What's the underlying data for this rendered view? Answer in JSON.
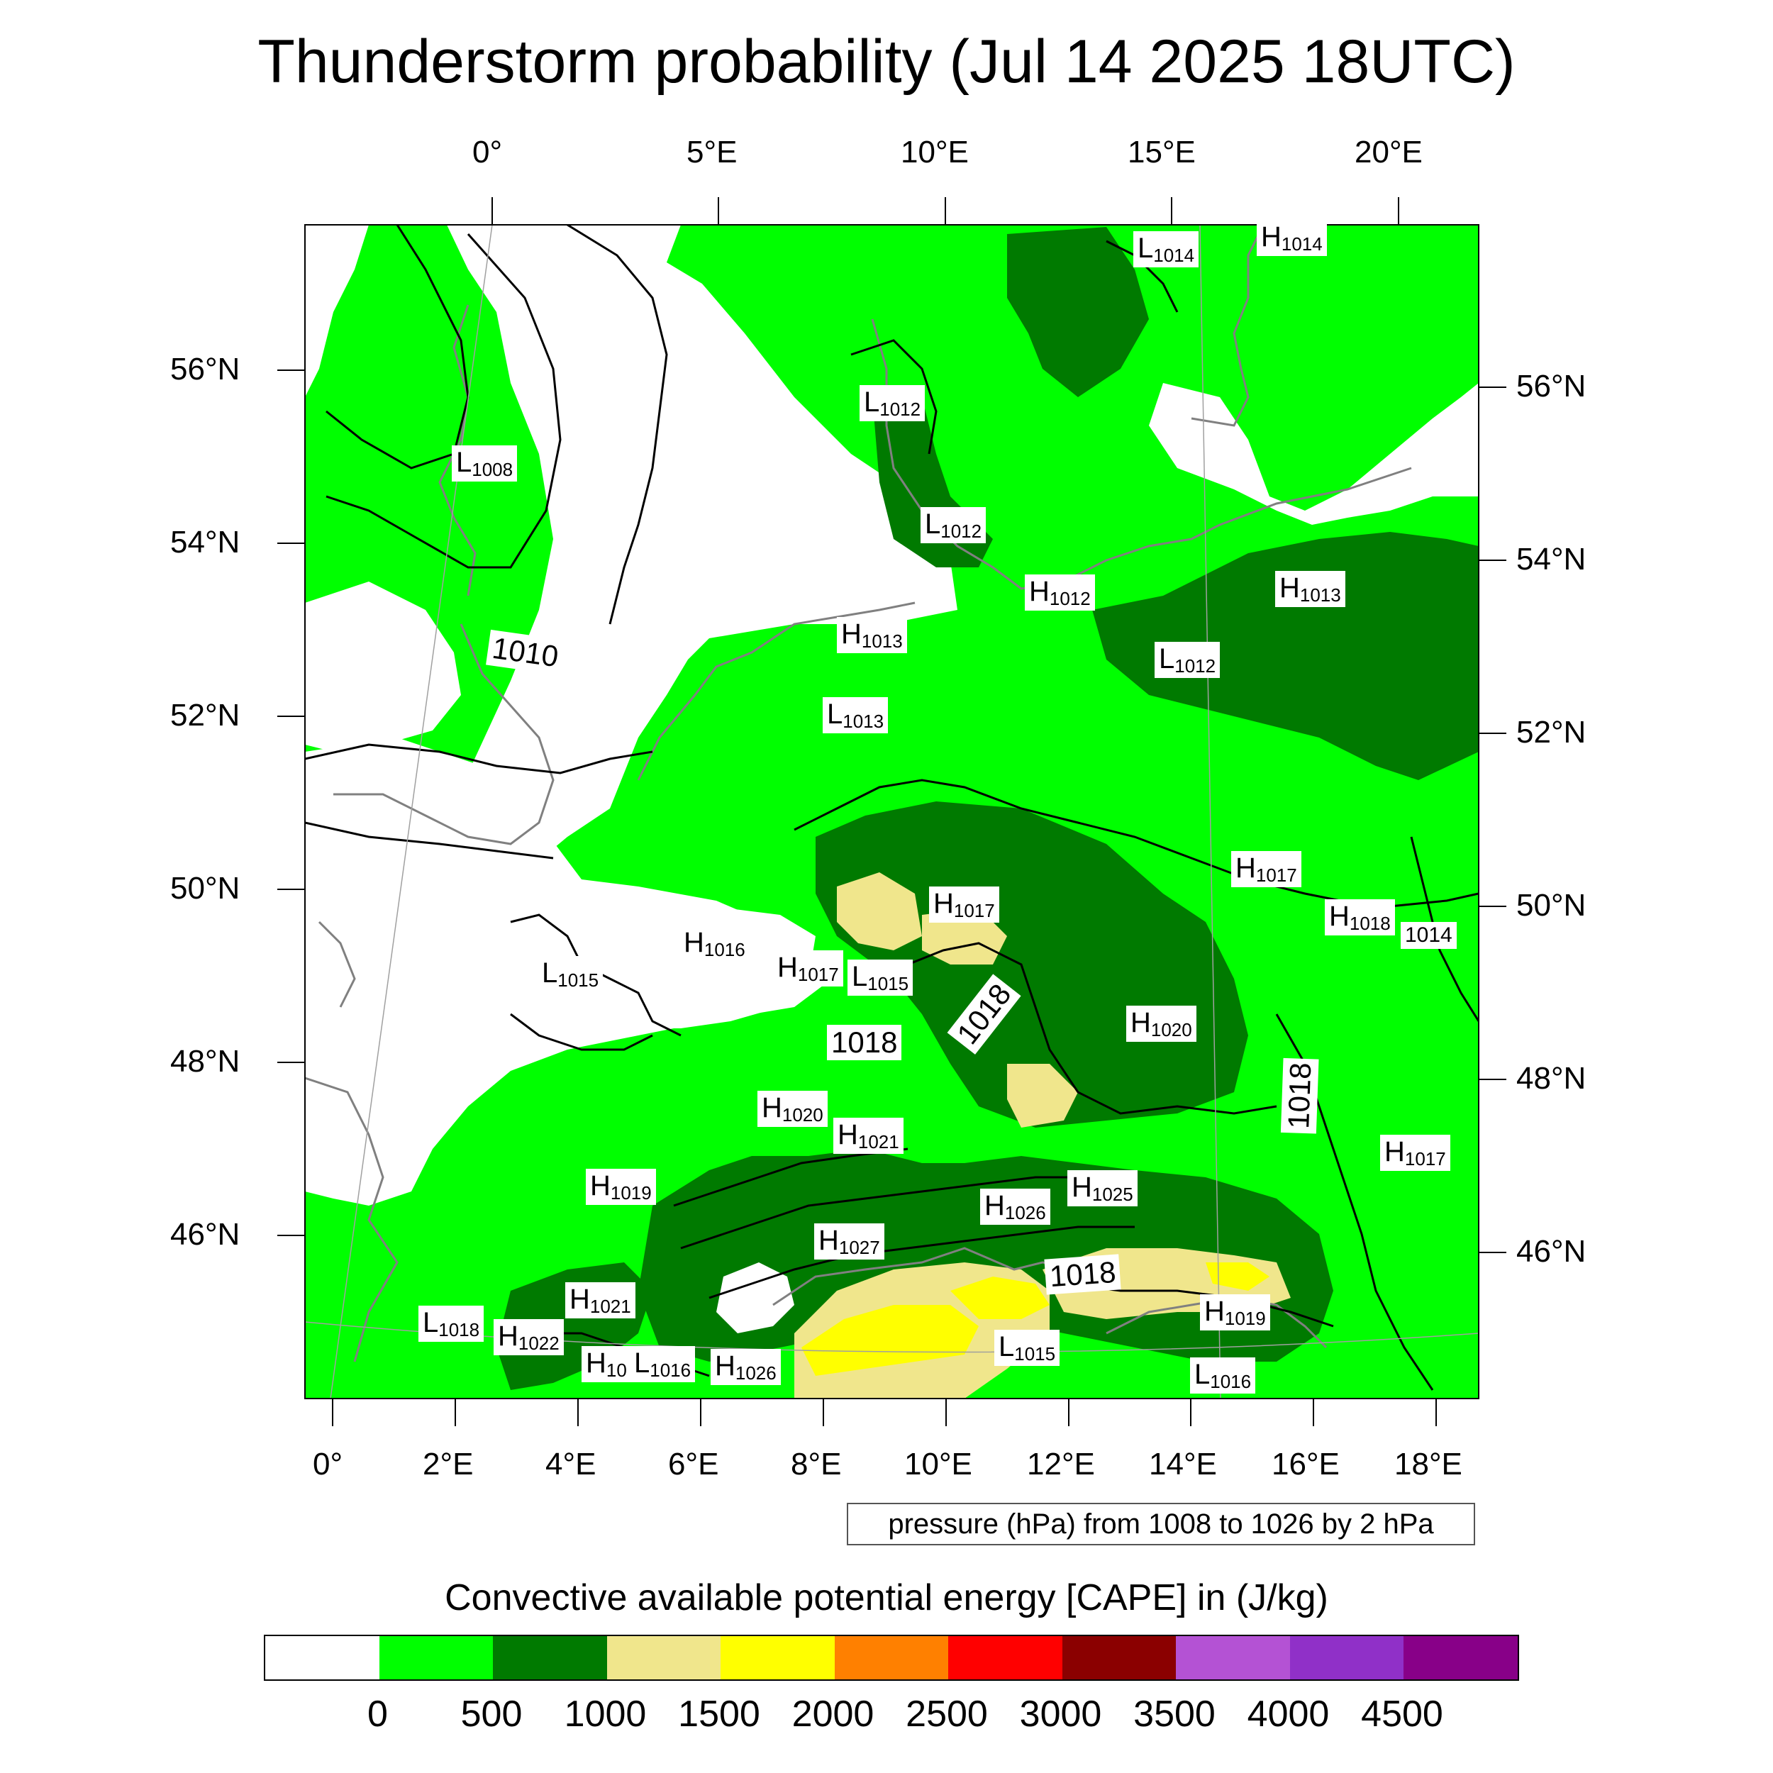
{
  "title": "Thunderstorm probability (Jul 14 2025 18UTC)",
  "top_lon_labels": [
    "0°",
    "5°E",
    "10°E",
    "15°E",
    "20°E"
  ],
  "bottom_lon_labels": [
    "0°",
    "2°E",
    "4°E",
    "6°E",
    "8°E",
    "10°E",
    "12°E",
    "14°E",
    "16°E",
    "18°E"
  ],
  "left_lat_labels": [
    "56°N",
    "54°N",
    "52°N",
    "50°N",
    "48°N",
    "46°N"
  ],
  "right_lat_labels": [
    "56°N",
    "54°N",
    "52°N",
    "50°N",
    "48°N",
    "46°N"
  ],
  "pressure_info": "pressure (hPa) from 1008 to 1026 by 2 hPa",
  "colorbar": {
    "caption": "Convective available potential energy [CAPE] in (J/kg)",
    "colors": [
      "#ffffff",
      "#00ff00",
      "#007a00",
      "#f0e68c",
      "#ffff00",
      "#ff8000",
      "#ff0000",
      "#8b0000",
      "#b452d4",
      "#9030c8",
      "#880088"
    ],
    "tick_labels": [
      "0",
      "500",
      "1000",
      "1500",
      "2000",
      "2500",
      "3000",
      "3500",
      "4000",
      "4500"
    ]
  },
  "map": {
    "colors": {
      "land_green": "#00ff00",
      "dark_green": "#007a00",
      "khaki": "#f0e68c",
      "yellow": "#ffff00",
      "coast": "#808080",
      "isobar": "#000000"
    },
    "pressure_centers": [
      {
        "type": "L",
        "value": "1014"
      },
      {
        "type": "H",
        "value": "1014"
      },
      {
        "type": "L",
        "value": "1012"
      },
      {
        "type": "L",
        "value": "1008"
      },
      {
        "type": "L",
        "value": "1012"
      },
      {
        "type": "H",
        "value": "1012"
      },
      {
        "type": "H",
        "value": "1013"
      },
      {
        "type": "H",
        "value": "1013"
      },
      {
        "type": "L",
        "value": "1012"
      },
      {
        "type": "L",
        "value": "1013"
      },
      {
        "type": "H",
        "value": "1017"
      },
      {
        "type": "H",
        "value": "1017"
      },
      {
        "type": "H",
        "value": "1018"
      },
      {
        "type": "H",
        "value": "1016"
      },
      {
        "type": "H",
        "value": "1017"
      },
      {
        "type": "L",
        "value": "1015"
      },
      {
        "type": "L",
        "value": "1015"
      },
      {
        "type": "H",
        "value": "1020"
      },
      {
        "type": "H",
        "value": "1020"
      },
      {
        "type": "H",
        "value": "1021"
      },
      {
        "type": "H",
        "value": "1019"
      },
      {
        "type": "H",
        "value": "1017"
      },
      {
        "type": "H",
        "value": "1026"
      },
      {
        "type": "H",
        "value": "1025"
      },
      {
        "type": "H",
        "value": "1027"
      },
      {
        "type": "H",
        "value": "1021"
      },
      {
        "type": "L",
        "value": "1018"
      },
      {
        "type": "H",
        "value": "1022"
      },
      {
        "type": "H",
        "value": "10"
      },
      {
        "type": "L",
        "value": "1016"
      },
      {
        "type": "H",
        "value": "1026"
      },
      {
        "type": "L",
        "value": "1015"
      },
      {
        "type": "H",
        "value": "1019"
      },
      {
        "type": "L",
        "value": "1016"
      }
    ],
    "isobar_labels": [
      "1010",
      "1018",
      "1018",
      "1018",
      "1018",
      "1014"
    ]
  }
}
